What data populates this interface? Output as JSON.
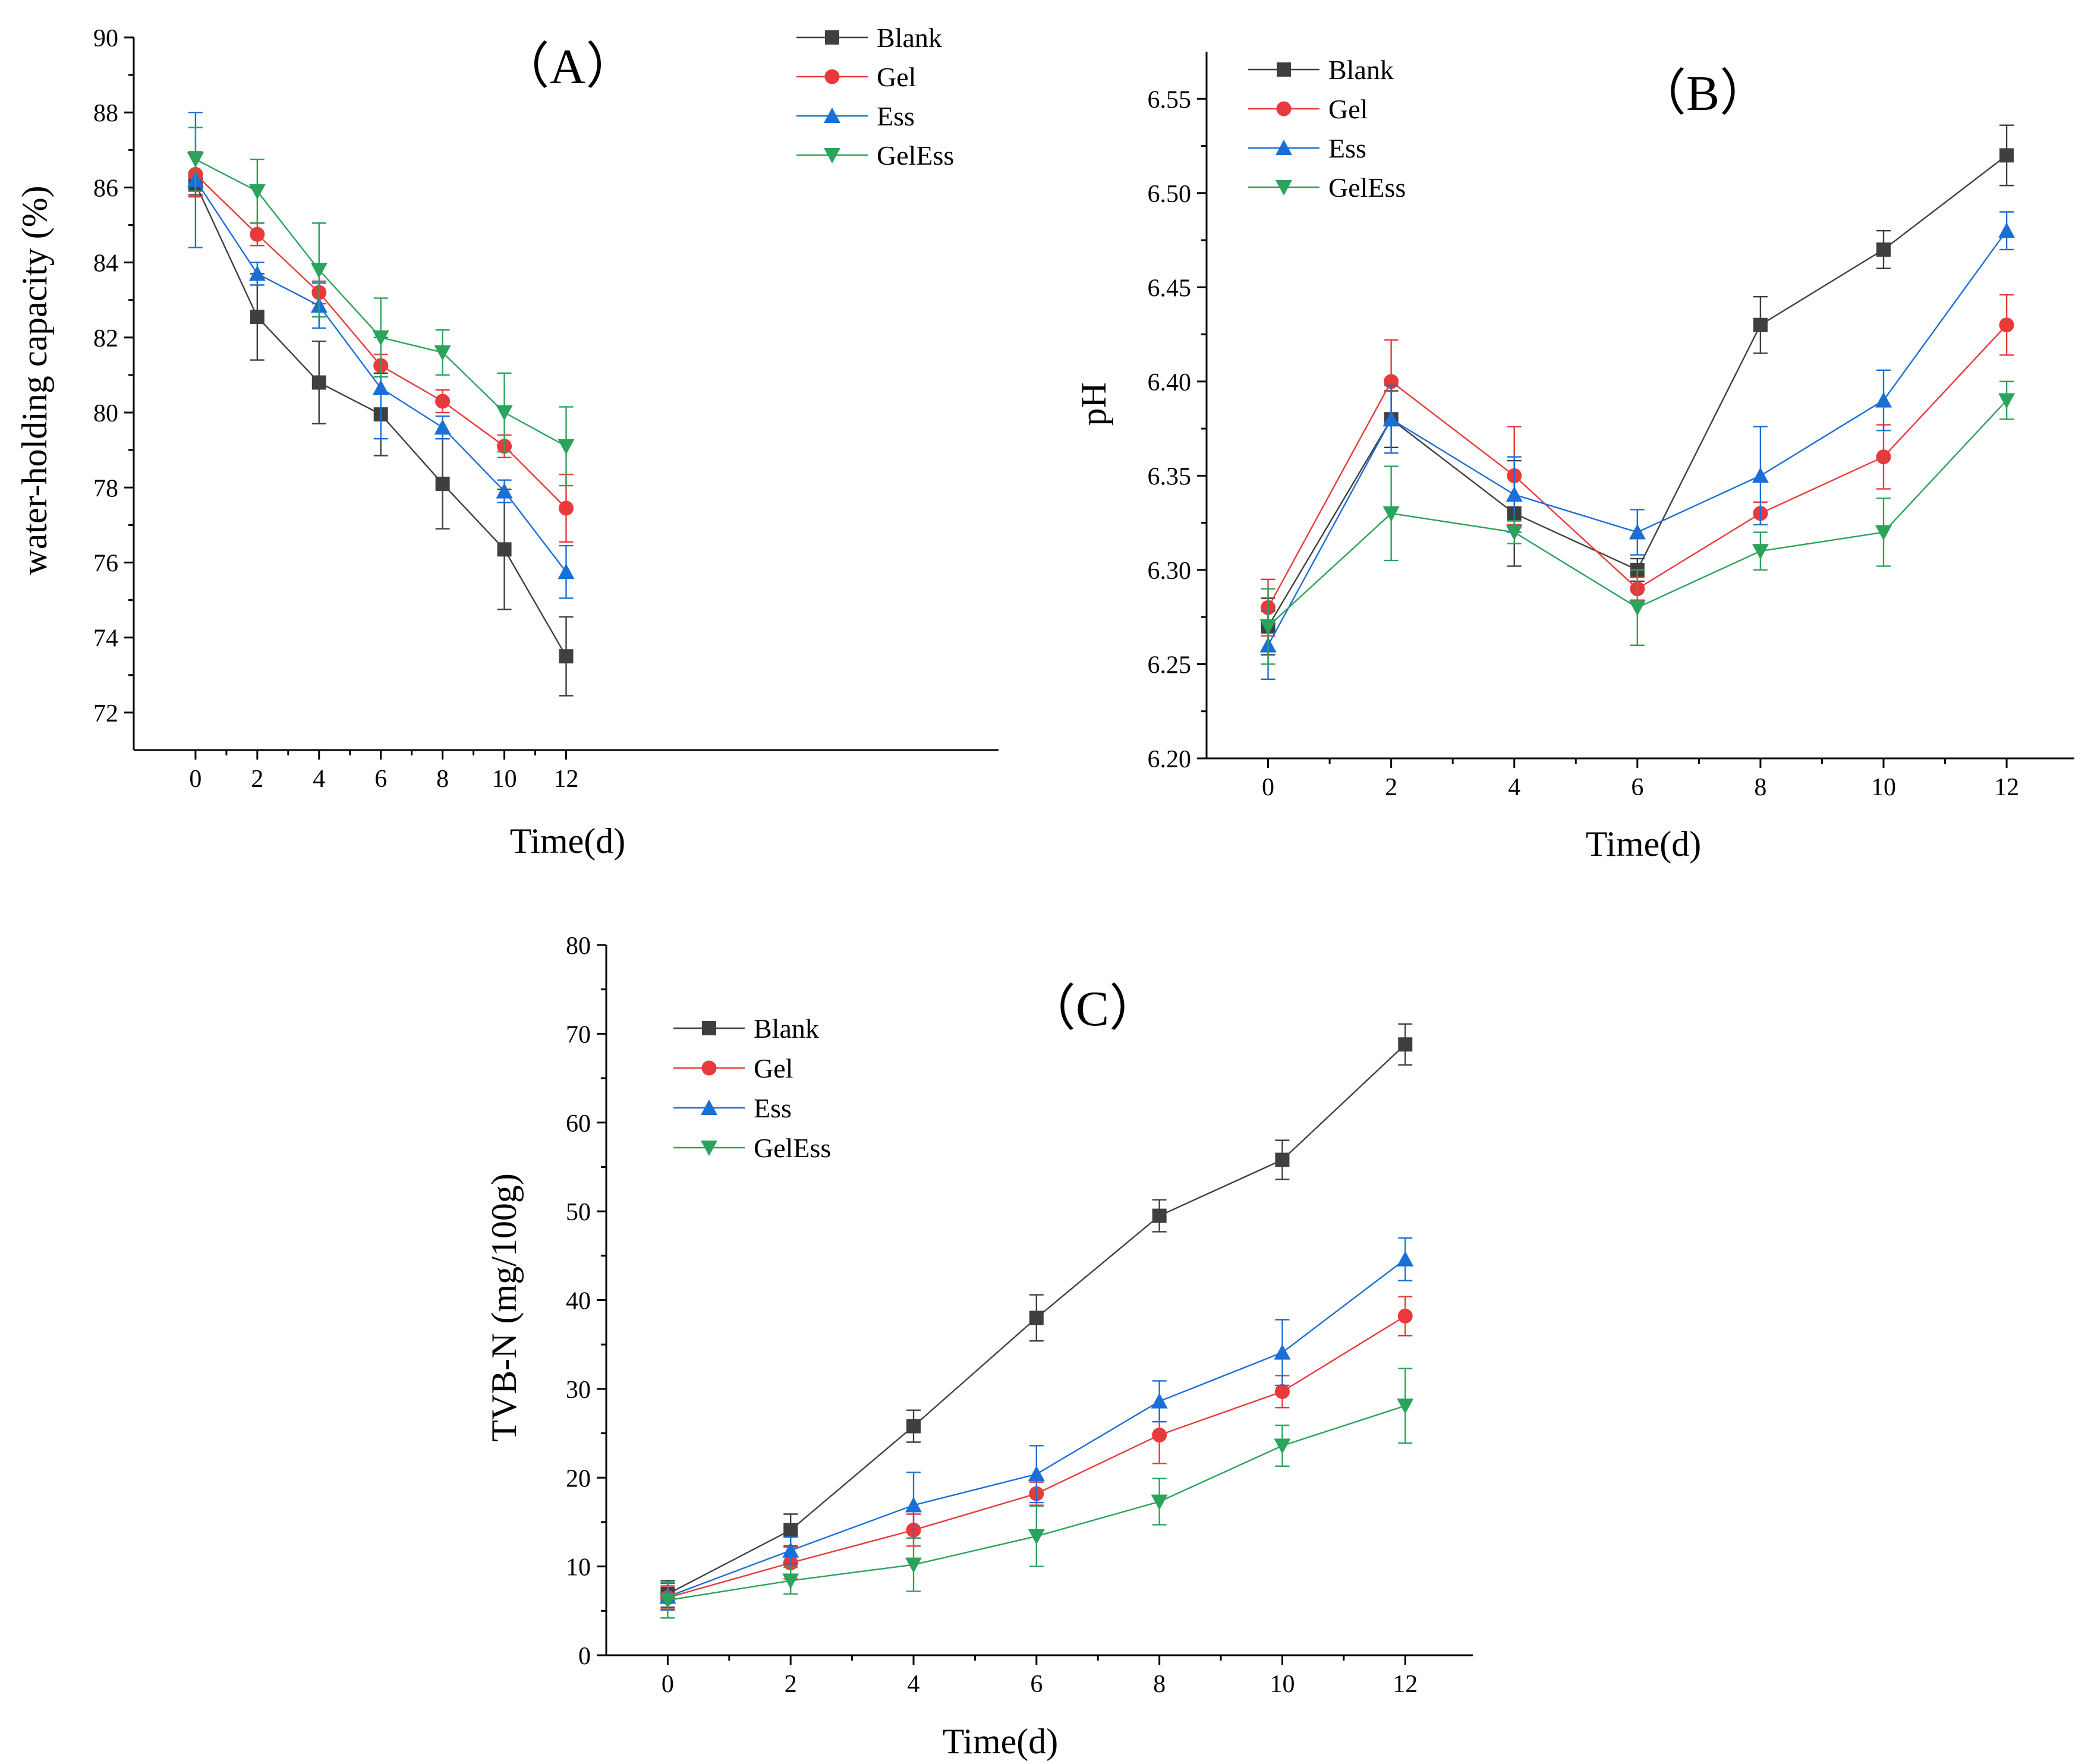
{
  "series_style": {
    "Blank": {
      "color": "#3f3f3f",
      "marker": "square"
    },
    "Gel": {
      "color": "#e83a3a",
      "marker": "circle"
    },
    "Ess": {
      "color": "#1a6fd6",
      "marker": "triangle-up"
    },
    "GelEss": {
      "color": "#2aa35b",
      "marker": "triangle-down"
    }
  },
  "chart_data": [
    {
      "type": "line",
      "panel_label": "（A）",
      "xlabel": "Time(d)",
      "ylabel": "water-holding capacity (%)",
      "x": [
        0,
        2,
        4,
        6,
        8,
        10,
        12
      ],
      "xlim": [
        -2,
        26
      ],
      "xticks": [
        0,
        2,
        4,
        6,
        8,
        10,
        12
      ],
      "ylim": [
        71,
        90
      ],
      "yticks": [
        72,
        74,
        76,
        78,
        80,
        82,
        84,
        86,
        88,
        90
      ],
      "ytick_labels": [
        "72",
        "74",
        "76",
        "78",
        "80",
        "82",
        "84",
        "86",
        "88",
        "90"
      ],
      "legend_position": "top-right",
      "series": [
        {
          "name": "Blank",
          "values": [
            86.1,
            82.55,
            80.8,
            79.95,
            78.1,
            76.35,
            73.5
          ],
          "errors": [
            0.3,
            1.15,
            1.1,
            1.1,
            1.2,
            1.6,
            1.05
          ]
        },
        {
          "name": "Gel",
          "values": [
            86.35,
            84.75,
            83.2,
            81.25,
            80.3,
            79.1,
            77.45
          ],
          "errors": [
            0.6,
            0.3,
            0.3,
            0.3,
            0.3,
            0.3,
            0.9
          ]
        },
        {
          "name": "Ess",
          "values": [
            86.2,
            83.7,
            82.85,
            80.65,
            79.6,
            77.9,
            75.75
          ],
          "errors": [
            1.8,
            0.3,
            0.6,
            1.35,
            0.3,
            0.3,
            0.7
          ]
        },
        {
          "name": "GelEss",
          "values": [
            86.75,
            85.9,
            83.8,
            82.0,
            81.6,
            80.0,
            79.1
          ],
          "errors": [
            0.85,
            0.85,
            1.25,
            1.05,
            0.6,
            1.05,
            1.05
          ]
        }
      ]
    },
    {
      "type": "line",
      "panel_label": "（B）",
      "xlabel": "Time(d)",
      "ylabel": "pH",
      "x": [
        0,
        2,
        4,
        6,
        8,
        10,
        12
      ],
      "xlim": [
        -1,
        13.1
      ],
      "xticks": [
        0,
        2,
        4,
        6,
        8,
        10,
        12
      ],
      "ylim": [
        6.2,
        6.575
      ],
      "yticks": [
        6.2,
        6.25,
        6.3,
        6.35,
        6.4,
        6.45,
        6.5,
        6.55
      ],
      "ytick_labels": [
        "6.20",
        "6.25",
        "6.30",
        "6.35",
        "6.40",
        "6.45",
        "6.50",
        "6.55"
      ],
      "legend_position": "top-left",
      "series": [
        {
          "name": "Blank",
          "values": [
            6.27,
            6.38,
            6.33,
            6.3,
            6.43,
            6.47,
            6.52
          ],
          "errors": [
            0.015,
            0.015,
            0.028,
            0.006,
            0.015,
            0.01,
            0.016
          ]
        },
        {
          "name": "Gel",
          "values": [
            6.28,
            6.4,
            6.35,
            6.29,
            6.33,
            6.36,
            6.43
          ],
          "errors": [
            0.015,
            0.022,
            0.026,
            0.006,
            0.006,
            0.017,
            0.016
          ]
        },
        {
          "name": "Ess",
          "values": [
            6.26,
            6.38,
            6.34,
            6.32,
            6.35,
            6.39,
            6.48
          ],
          "errors": [
            0.018,
            0.018,
            0.02,
            0.012,
            0.026,
            0.016,
            0.01
          ]
        },
        {
          "name": "GelEss",
          "values": [
            6.27,
            6.33,
            6.32,
            6.28,
            6.31,
            6.32,
            6.39
          ],
          "errors": [
            0.02,
            0.025,
            0.006,
            0.02,
            0.01,
            0.018,
            0.01
          ]
        }
      ]
    },
    {
      "type": "line",
      "panel_label": "（C）",
      "xlabel": "Time(d)",
      "ylabel": "TVB-N (mg/100g)",
      "x": [
        0,
        2,
        4,
        6,
        8,
        10,
        12
      ],
      "xlim": [
        -1,
        13.1
      ],
      "xticks": [
        0,
        2,
        4,
        6,
        8,
        10,
        12
      ],
      "ylim": [
        0,
        80
      ],
      "yticks": [
        0,
        10,
        20,
        30,
        40,
        50,
        60,
        70,
        80
      ],
      "ytick_labels": [
        "0",
        "10",
        "20",
        "30",
        "40",
        "50",
        "60",
        "70",
        "80"
      ],
      "legend_position": "top-left",
      "series": [
        {
          "name": "Blank",
          "values": [
            6.9,
            14.1,
            25.8,
            38.0,
            49.5,
            55.8,
            68.8
          ],
          "errors": [
            1.5,
            1.8,
            1.8,
            2.6,
            1.8,
            2.2,
            2.3
          ]
        },
        {
          "name": "Gel",
          "values": [
            6.5,
            10.4,
            14.1,
            18.2,
            24.8,
            29.7,
            38.2
          ],
          "errors": [
            1.3,
            1.8,
            1.8,
            1.3,
            3.2,
            1.8,
            2.2
          ]
        },
        {
          "name": "Ess",
          "values": [
            6.6,
            11.8,
            16.9,
            20.4,
            28.6,
            34.1,
            44.6
          ],
          "errors": [
            1.5,
            1.5,
            3.7,
            3.2,
            2.3,
            3.7,
            2.4
          ]
        },
        {
          "name": "GelEss",
          "values": [
            6.2,
            8.4,
            10.2,
            13.4,
            17.3,
            23.6,
            28.1
          ],
          "errors": [
            2.0,
            1.5,
            3.0,
            3.4,
            2.6,
            2.3,
            4.2
          ]
        }
      ]
    }
  ]
}
